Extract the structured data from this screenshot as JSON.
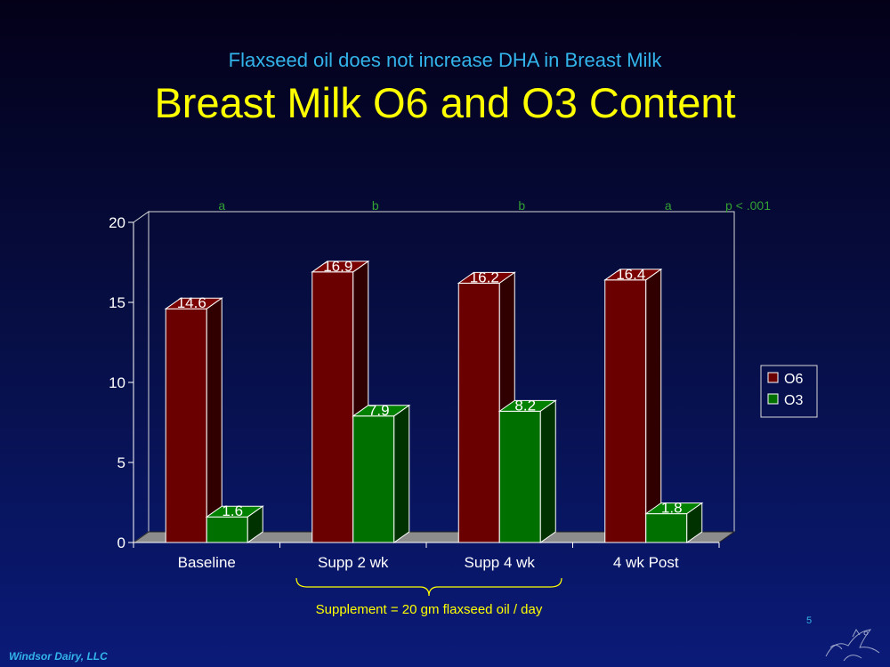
{
  "slide": {
    "subtitle": "Flaxseed oil does not increase DHA in Breast Milk",
    "title": "Breast Milk O6 and O3 Content",
    "footer": "Windsor Dairy, LLC",
    "page_number": "5",
    "colors": {
      "background_top": "#030018",
      "background_bottom": "#0a1a78",
      "title": "#ffff00",
      "subtitle": "#33b4ea"
    }
  },
  "chart_data": {
    "type": "bar",
    "style": "3d-clustered-column",
    "categories": [
      "Baseline",
      "Supp 2 wk",
      "Supp 4 wk",
      "4 wk Post"
    ],
    "series": [
      {
        "name": "O6",
        "values": [
          14.6,
          16.9,
          16.2,
          16.4
        ],
        "labels": [
          "14.6",
          "16.9",
          "16.2",
          "16.4"
        ],
        "color": "#6b0000"
      },
      {
        "name": "O3",
        "values": [
          1.6,
          7.9,
          8.2,
          1.8
        ],
        "labels": [
          "1.6",
          "7.9",
          "8.2",
          "1.8"
        ],
        "color": "#007000"
      }
    ],
    "yticks": [
      "0",
      "5",
      "10",
      "15",
      "20"
    ],
    "ylim": [
      0,
      20
    ],
    "significance_letters": [
      "a",
      "b",
      "b",
      "a"
    ],
    "significance_note": "p < .001",
    "bracket_annotation": "Supplement = 20 gm flaxseed oil / day",
    "bracket_span": [
      "Supp 2 wk",
      "Supp 4 wk"
    ],
    "legend_position": "right",
    "grid": false
  }
}
